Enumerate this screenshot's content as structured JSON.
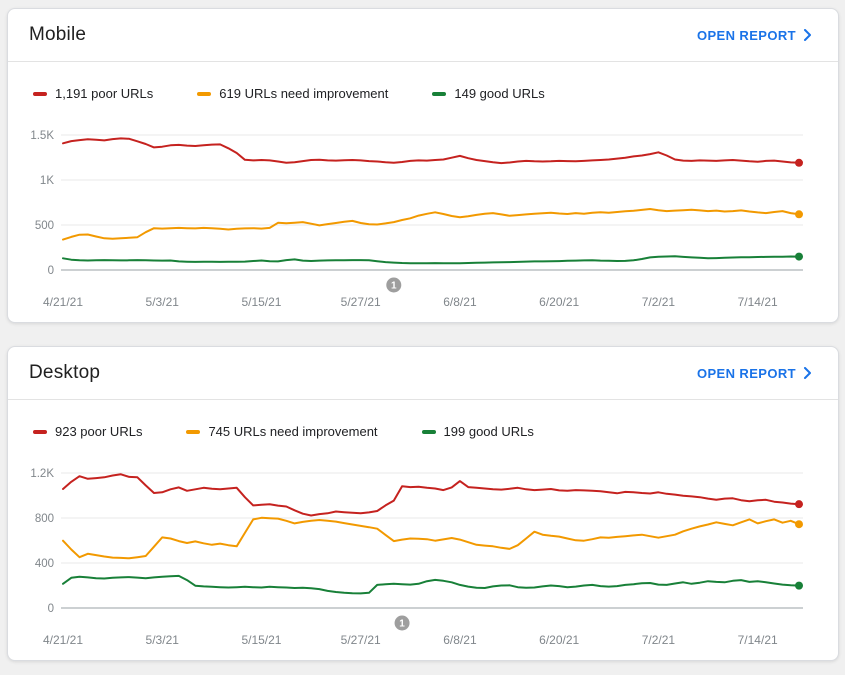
{
  "colors": {
    "poor": "#c5221f",
    "needs_improvement": "#f29900",
    "good": "#188038",
    "link": "#1a73e8",
    "axis_text": "#80868b",
    "gridline": "#e8e8e8",
    "axis_line": "#9aa0a6",
    "annotation_bg": "#9e9e9e"
  },
  "charts": [
    {
      "title": "Mobile",
      "open_report_label": "OPEN REPORT",
      "legend": [
        {
          "label": "1,191 poor URLs",
          "color": "#c5221f"
        },
        {
          "label": "619 URLs need improvement",
          "color": "#f29900"
        },
        {
          "label": "149 good URLs",
          "color": "#188038"
        }
      ],
      "chart_data": {
        "type": "line",
        "title": "Mobile Core Web Vitals URLs over time",
        "x_tick_labels": [
          "4/21/21",
          "5/3/21",
          "5/15/21",
          "5/27/21",
          "6/8/21",
          "6/20/21",
          "7/2/21",
          "7/14/21"
        ],
        "x_tick_days": [
          0,
          12,
          24,
          36,
          48,
          60,
          72,
          84
        ],
        "n_points": 90,
        "ylim": [
          0,
          1500
        ],
        "y_ticks": [
          {
            "value": 0,
            "label": "0"
          },
          {
            "value": 500,
            "label": "500"
          },
          {
            "value": 1000,
            "label": "1K"
          },
          {
            "value": 1500,
            "label": "1.5K"
          }
        ],
        "annotation": {
          "label": "1",
          "day": 40
        },
        "legend_position": "top",
        "grid": true,
        "series": [
          {
            "name": "poor URLs",
            "color": "#c5221f",
            "values": [
              1408,
              1432,
              1443,
              1452,
              1448,
              1440,
              1455,
              1462,
              1458,
              1430,
              1400,
              1362,
              1370,
              1385,
              1390,
              1382,
              1378,
              1385,
              1393,
              1396,
              1352,
              1300,
              1225,
              1218,
              1222,
              1218,
              1205,
              1192,
              1198,
              1210,
              1222,
              1225,
              1218,
              1215,
              1220,
              1222,
              1218,
              1210,
              1205,
              1198,
              1192,
              1200,
              1212,
              1218,
              1215,
              1222,
              1228,
              1248,
              1268,
              1242,
              1222,
              1210,
              1198,
              1188,
              1195,
              1205,
              1212,
              1208,
              1205,
              1208,
              1212,
              1210,
              1208,
              1212,
              1218,
              1222,
              1228,
              1238,
              1248,
              1262,
              1272,
              1288,
              1308,
              1272,
              1228,
              1215,
              1212,
              1218,
              1215,
              1212,
              1218,
              1222,
              1215,
              1208,
              1202,
              1212,
              1215,
              1205,
              1196,
              1191
            ]
          },
          {
            "name": "URLs need improvement",
            "color": "#f29900",
            "values": [
              338,
              368,
              392,
              395,
              372,
              352,
              348,
              352,
              358,
              365,
              420,
              465,
              460,
              463,
              468,
              465,
              462,
              468,
              464,
              458,
              450,
              458,
              462,
              465,
              460,
              468,
              524,
              520,
              526,
              532,
              515,
              496,
              510,
              522,
              535,
              545,
              522,
              508,
              505,
              518,
              532,
              555,
              575,
              605,
              625,
              641,
              622,
              600,
              586,
              598,
              612,
              625,
              632,
              618,
              602,
              610,
              618,
              624,
              630,
              636,
              628,
              622,
              632,
              626,
              635,
              642,
              636,
              645,
              652,
              658,
              668,
              678,
              665,
              655,
              660,
              665,
              670,
              662,
              655,
              660,
              650,
              655,
              662,
              650,
              640,
              632,
              645,
              655,
              632,
              619
            ]
          },
          {
            "name": "good URLs",
            "color": "#188038",
            "values": [
              130,
              115,
              108,
              106,
              108,
              110,
              109,
              107,
              108,
              110,
              108,
              106,
              104,
              106,
              95,
              92,
              90,
              91,
              92,
              90,
              91,
              92,
              93,
              100,
              106,
              98,
              95,
              110,
              118,
              104,
              100,
              104,
              107,
              109,
              108,
              110,
              110,
              108,
              98,
              88,
              82,
              78,
              76,
              75,
              76,
              77,
              76,
              75,
              76,
              78,
              80,
              82,
              84,
              86,
              88,
              90,
              93,
              95,
              96,
              97,
              99,
              102,
              105,
              107,
              109,
              105,
              102,
              100,
              101,
              108,
              122,
              140,
              148,
              150,
              152,
              146,
              140,
              135,
              130,
              132,
              136,
              139,
              142,
              141,
              144,
              146,
              147,
              148,
              150,
              149
            ]
          }
        ]
      }
    },
    {
      "title": "Desktop",
      "open_report_label": "OPEN REPORT",
      "legend": [
        {
          "label": "923 poor URLs",
          "color": "#c5221f"
        },
        {
          "label": "745 URLs need improvement",
          "color": "#f29900"
        },
        {
          "label": "199 good URLs",
          "color": "#188038"
        }
      ],
      "chart_data": {
        "type": "line",
        "title": "Desktop Core Web Vitals URLs over time",
        "x_tick_labels": [
          "4/21/21",
          "5/3/21",
          "5/15/21",
          "5/27/21",
          "6/8/21",
          "6/20/21",
          "7/2/21",
          "7/14/21"
        ],
        "x_tick_days": [
          0,
          12,
          24,
          36,
          48,
          60,
          72,
          84
        ],
        "n_points": 90,
        "ylim": [
          0,
          1200
        ],
        "y_ticks": [
          {
            "value": 0,
            "label": "0"
          },
          {
            "value": 400,
            "label": "400"
          },
          {
            "value": 800,
            "label": "800"
          },
          {
            "value": 1200,
            "label": "1.2K"
          }
        ],
        "annotation": {
          "label": "1",
          "day": 41
        },
        "legend_position": "top",
        "grid": true,
        "series": [
          {
            "name": "poor URLs",
            "color": "#c5221f",
            "values": [
              1058,
              1122,
              1172,
              1148,
              1155,
              1162,
              1178,
              1188,
              1165,
              1162,
              1090,
              1022,
              1028,
              1055,
              1072,
              1042,
              1055,
              1068,
              1060,
              1055,
              1062,
              1068,
              985,
              912,
              918,
              922,
              910,
              902,
              868,
              838,
              822,
              835,
              842,
              858,
              852,
              846,
              842,
              850,
              862,
              912,
              955,
              1082,
              1075,
              1078,
              1068,
              1062,
              1048,
              1072,
              1128,
              1075,
              1068,
              1062,
              1055,
              1052,
              1060,
              1068,
              1055,
              1048,
              1052,
              1058,
              1045,
              1042,
              1048,
              1045,
              1042,
              1038,
              1028,
              1020,
              1032,
              1028,
              1022,
              1018,
              1028,
              1015,
              1008,
              998,
              992,
              985,
              972,
              962,
              972,
              975,
              958,
              948,
              958,
              962,
              945,
              938,
              928,
              923
            ]
          },
          {
            "name": "URLs need improvement",
            "color": "#f29900",
            "values": [
              598,
              520,
              452,
              482,
              470,
              458,
              448,
              445,
              442,
              452,
              462,
              545,
              628,
              618,
              595,
              578,
              592,
              575,
              562,
              572,
              558,
              548,
              668,
              788,
              802,
              798,
              795,
              775,
              752,
              765,
              775,
              782,
              775,
              768,
              755,
              742,
              730,
              718,
              705,
              650,
              595,
              608,
              618,
              615,
              612,
              598,
              610,
              622,
              608,
              585,
              562,
              555,
              548,
              535,
              525,
              558,
              618,
              678,
              652,
              642,
              635,
              618,
              602,
              598,
              612,
              628,
              625,
              632,
              638,
              645,
              652,
              638,
              625,
              638,
              652,
              682,
              705,
              725,
              742,
              762,
              748,
              735,
              762,
              788,
              752,
              772,
              788,
              758,
              775,
              745
            ]
          },
          {
            "name": "good URLs",
            "color": "#188038",
            "values": [
              215,
              268,
              278,
              272,
              265,
              262,
              268,
              272,
              275,
              270,
              265,
              272,
              278,
              282,
              285,
              248,
              198,
              192,
              188,
              185,
              182,
              185,
              188,
              185,
              182,
              188,
              185,
              182,
              178,
              180,
              175,
              168,
              152,
              142,
              135,
              132,
              130,
              135,
              205,
              212,
              215,
              212,
              208,
              215,
              238,
              250,
              242,
              228,
              205,
              190,
              180,
              178,
              192,
              200,
              202,
              185,
              180,
              182,
              192,
              200,
              195,
              185,
              190,
              200,
              205,
              195,
              190,
              195,
              205,
              212,
              220,
              222,
              208,
              205,
              218,
              228,
              215,
              225,
              238,
              232,
              228,
              242,
              248,
              232,
              238,
              228,
              218,
              208,
              202,
              199
            ]
          }
        ]
      }
    }
  ]
}
